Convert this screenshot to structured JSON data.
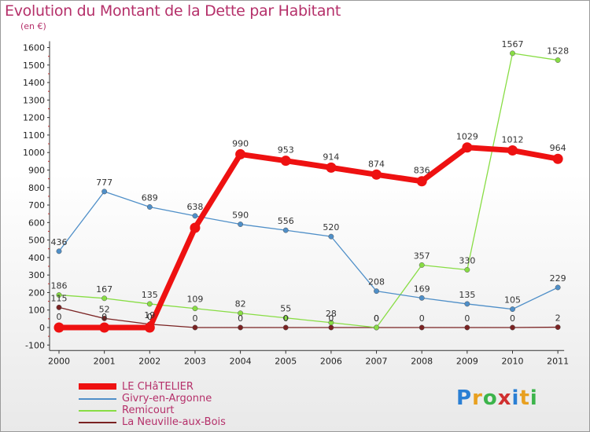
{
  "page": {
    "title": "Evolution du Montant de la Dette par Habitant",
    "subtitle": "(en €)",
    "logo": "Proxiti"
  },
  "chart_data": {
    "type": "line",
    "title": "Evolution du Montant de la Dette par Habitant",
    "ylabel": "(en €)",
    "xlabel": "",
    "x": [
      "2000",
      "2001",
      "2002",
      "2003",
      "2004",
      "2005",
      "2006",
      "2007",
      "2008",
      "2009",
      "2010",
      "2011"
    ],
    "ylim": [
      -100,
      1600
    ],
    "yticks": [
      -100,
      0,
      100,
      200,
      300,
      400,
      500,
      600,
      700,
      800,
      900,
      1000,
      1100,
      1200,
      1300,
      1400,
      1500,
      1600
    ],
    "grid": false,
    "legend_position": "bottom-left",
    "series": [
      {
        "name": "LE CHâTELIER",
        "color": "#ee1111",
        "values": [
          0,
          0,
          0,
          570,
          990,
          953,
          914,
          874,
          836,
          1029,
          1012,
          964
        ],
        "labels": [
          "0",
          "0",
          "0",
          "",
          "990",
          "953",
          "914",
          "874",
          "836",
          "1029",
          "1012",
          "964"
        ]
      },
      {
        "name": "Givry-en-Argonne",
        "color": "#4f8fc8",
        "values": [
          436,
          777,
          689,
          638,
          590,
          556,
          520,
          208,
          169,
          135,
          105,
          229
        ],
        "labels": [
          "436",
          "777",
          "689",
          "638",
          "590",
          "556",
          "520",
          "208",
          "169",
          "135",
          "105",
          "229"
        ]
      },
      {
        "name": "Remicourt",
        "color": "#88dd44",
        "values": [
          186,
          167,
          135,
          109,
          82,
          55,
          28,
          0,
          357,
          330,
          1567,
          1528
        ],
        "labels": [
          "186",
          "167",
          "135",
          "109",
          "82",
          "55",
          "28",
          "0",
          "357",
          "330",
          "1567",
          "1528"
        ]
      },
      {
        "name": "La Neuville-aux-Bois",
        "color": "#7a2222",
        "values": [
          115,
          52,
          19,
          0,
          0,
          0,
          0,
          0,
          0,
          0,
          0,
          2
        ],
        "labels": [
          "115",
          "52",
          "19",
          "0",
          "0",
          "0",
          "0",
          "0",
          "0",
          "0",
          "0",
          "2"
        ]
      }
    ]
  },
  "colors": {
    "title": "#b5306a",
    "axis": "#555555"
  }
}
